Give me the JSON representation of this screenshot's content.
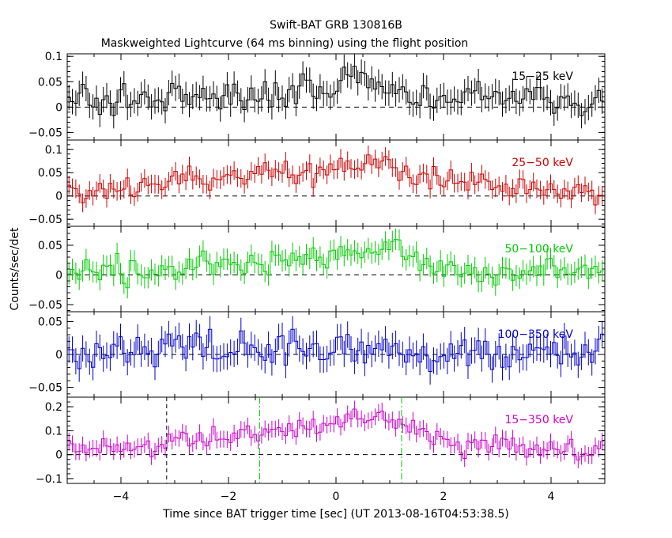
{
  "chart_data": {
    "type": "line",
    "title": "Swift-BAT GRB 130816B",
    "subtitle": "Maskweighted Lightcurve (64 ms binning) using the flight position",
    "xlabel": "Time since BAT trigger time [sec] (UT 2013-08-16T04:53:38.5)",
    "ylabel": "Counts/sec/det",
    "xlim": [
      -5,
      5
    ],
    "x_ticks": [
      -4,
      -2,
      0,
      2,
      4
    ],
    "x_tick_labels": [
      "−4",
      "−2",
      "0",
      "2",
      "4"
    ],
    "bin_width": 0.064,
    "grid": false,
    "panels": [
      {
        "band": "15-25 keV",
        "label": "15−25 keV",
        "color": "#000000",
        "ylim": [
          -0.065,
          0.105
        ],
        "y_ticks": [
          -0.05,
          0,
          0.05,
          0.1
        ],
        "y_tick_labels": [
          "−0.05",
          "0",
          "0.05",
          "0.1"
        ],
        "keypoints": [
          [
            -5,
            0.01
          ],
          [
            -4.5,
            0.015
          ],
          [
            -3,
            0.02
          ],
          [
            -1.5,
            0.02
          ],
          [
            -0.5,
            0.035
          ],
          [
            0.5,
            0.06
          ],
          [
            0.8,
            0.045
          ],
          [
            1.5,
            0.02
          ],
          [
            3,
            0.015
          ],
          [
            5,
            0.01
          ]
        ],
        "noise": 0.022,
        "error": 0.025
      },
      {
        "band": "25-50 keV",
        "label": "25−50 keV",
        "color": "#cc0000",
        "ylim": [
          -0.065,
          0.12
        ],
        "y_ticks": [
          -0.05,
          0,
          0.05,
          0.1
        ],
        "y_tick_labels": [
          "−0.05",
          "0",
          "0.05",
          "0.1"
        ],
        "keypoints": [
          [
            -5,
            0.008
          ],
          [
            -3.5,
            0.02
          ],
          [
            -3,
            0.04
          ],
          [
            -2,
            0.03
          ],
          [
            -1.5,
            0.055
          ],
          [
            -0.5,
            0.055
          ],
          [
            0,
            0.065
          ],
          [
            0.8,
            0.075
          ],
          [
            1.5,
            0.04
          ],
          [
            2.5,
            0.025
          ],
          [
            3.5,
            0.02
          ],
          [
            5,
            0.005
          ]
        ],
        "noise": 0.018,
        "error": 0.02
      },
      {
        "band": "50-100 keV",
        "label": "50−100 keV",
        "color": "#00cc00",
        "ylim": [
          -0.062,
          0.082
        ],
        "y_ticks": [
          -0.05,
          0,
          0.05
        ],
        "y_tick_labels": [
          "−0.05",
          "0",
          "0.05"
        ],
        "keypoints": [
          [
            -5,
            0.005
          ],
          [
            -3.5,
            0.01
          ],
          [
            -2,
            0.02
          ],
          [
            -1,
            0.025
          ],
          [
            0,
            0.035
          ],
          [
            0.8,
            0.045
          ],
          [
            1.5,
            0.03
          ],
          [
            2,
            0.005
          ],
          [
            3,
            0.0
          ],
          [
            3.7,
            0.015
          ],
          [
            5,
            0.0
          ]
        ],
        "noise": 0.016,
        "error": 0.018
      },
      {
        "band": "100-350 keV",
        "label": "100−350 keV",
        "color": "#0000cc",
        "ylim": [
          -0.065,
          0.065
        ],
        "y_ticks": [
          -0.05,
          0,
          0.05
        ],
        "y_tick_labels": [
          "−0.05",
          "0",
          "0.05"
        ],
        "keypoints": [
          [
            -5,
            0.0
          ],
          [
            -3.5,
            0.005
          ],
          [
            -2.5,
            0.01
          ],
          [
            -1.5,
            0.005
          ],
          [
            0,
            0.005
          ],
          [
            1,
            0.01
          ],
          [
            2,
            0.0
          ],
          [
            3,
            0.0
          ],
          [
            4,
            0.005
          ],
          [
            5,
            0.0
          ]
        ],
        "noise": 0.018,
        "error": 0.02
      },
      {
        "band": "15-350 keV",
        "label": "15−350 keV",
        "color": "#cc00cc",
        "ylim": [
          -0.12,
          0.24
        ],
        "y_ticks": [
          -0.1,
          0,
          0.1,
          0.2
        ],
        "y_tick_labels": [
          "−0.1",
          "0",
          "0.1",
          "0.2"
        ],
        "keypoints": [
          [
            -5,
            0.03
          ],
          [
            -3.5,
            0.05
          ],
          [
            -2.5,
            0.06
          ],
          [
            -1.5,
            0.1
          ],
          [
            -0.5,
            0.12
          ],
          [
            0,
            0.14
          ],
          [
            0.8,
            0.15
          ],
          [
            1.5,
            0.1
          ],
          [
            2,
            0.05
          ],
          [
            3,
            0.04
          ],
          [
            4,
            0.03
          ],
          [
            5,
            0.0
          ]
        ],
        "noise": 0.03,
        "error": 0.035,
        "markers": [
          {
            "x": -3.15,
            "color": "#000000",
            "style": "dashed"
          },
          {
            "x": -1.42,
            "color": "#00cc00",
            "style": "dashdot"
          },
          {
            "x": 1.22,
            "color": "#00cc00",
            "style": "dashdot"
          }
        ]
      }
    ]
  }
}
